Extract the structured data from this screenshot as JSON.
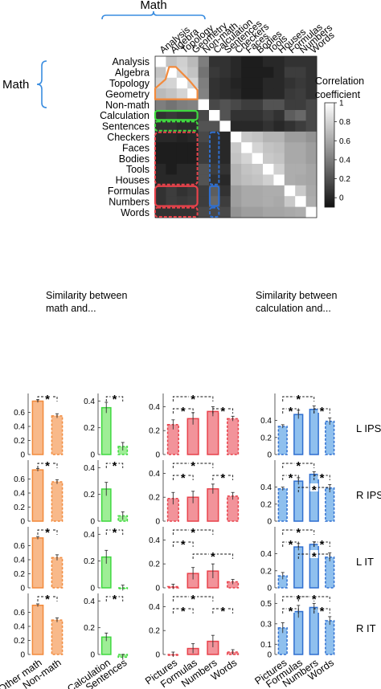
{
  "chart_data": [
    {
      "type": "heatmap",
      "group_label": "Math",
      "row_labels": [
        "Analysis",
        "Algebra",
        "Topology",
        "Geometry",
        "Non-math",
        "Calculation",
        "Sentences",
        "Checkers",
        "Faces",
        "Bodies",
        "Tools",
        "Houses",
        "Formulas",
        "Numbers",
        "Words"
      ],
      "col_labels": [
        "Analysis",
        "Algebra",
        "Topology",
        "Geometry",
        "Non-math",
        "Calculation",
        "Sentences",
        "Checkers",
        "Faces",
        "Bodies",
        "Tools",
        "Houses",
        "Formulas",
        "Numbers",
        "Words"
      ],
      "colorbar": {
        "title_lines": [
          "Correlation",
          "coefficient"
        ],
        "ticks": [
          0,
          0.2,
          0.4,
          0.6,
          0.8,
          1
        ],
        "range": [
          -0.1,
          1
        ]
      },
      "values": [
        [
          1.0,
          0.72,
          0.78,
          0.68,
          0.4,
          0.05,
          0.05,
          0.0,
          -0.05,
          -0.05,
          0.0,
          0.0,
          0.05,
          0.05,
          0.05
        ],
        [
          0.72,
          1.0,
          0.8,
          0.72,
          0.35,
          0.08,
          0.05,
          0.0,
          -0.05,
          -0.05,
          -0.05,
          0.0,
          0.1,
          0.1,
          0.05
        ],
        [
          0.78,
          0.8,
          1.0,
          0.8,
          0.4,
          0.05,
          0.02,
          -0.02,
          -0.05,
          -0.05,
          0.0,
          0.0,
          0.05,
          0.08,
          0.05
        ],
        [
          0.68,
          0.72,
          0.8,
          1.0,
          0.42,
          0.05,
          0.02,
          0.0,
          -0.05,
          -0.05,
          0.0,
          0.0,
          0.08,
          0.1,
          0.05
        ],
        [
          0.4,
          0.35,
          0.4,
          0.42,
          1.0,
          0.15,
          0.2,
          0.15,
          0.1,
          0.1,
          0.2,
          0.2,
          0.1,
          0.1,
          0.15
        ],
        [
          0.05,
          0.08,
          0.05,
          0.05,
          0.15,
          1.0,
          0.2,
          0.05,
          0.05,
          0.05,
          0.1,
          0.05,
          0.25,
          0.3,
          0.15
        ],
        [
          0.05,
          0.05,
          0.02,
          0.02,
          0.2,
          0.2,
          1.0,
          0.0,
          0.0,
          0.0,
          0.05,
          0.0,
          0.05,
          0.1,
          0.15
        ],
        [
          0.0,
          0.0,
          -0.02,
          0.0,
          0.15,
          0.05,
          0.0,
          1.0,
          0.75,
          0.72,
          0.65,
          0.65,
          0.55,
          0.55,
          0.5
        ],
        [
          -0.05,
          -0.05,
          -0.05,
          -0.05,
          0.1,
          0.05,
          0.0,
          0.75,
          1.0,
          0.8,
          0.72,
          0.7,
          0.6,
          0.6,
          0.55
        ],
        [
          -0.05,
          -0.05,
          -0.05,
          -0.05,
          0.1,
          0.05,
          0.0,
          0.72,
          0.8,
          1.0,
          0.75,
          0.72,
          0.6,
          0.6,
          0.55
        ],
        [
          0.0,
          -0.05,
          0.0,
          0.0,
          0.2,
          0.1,
          0.05,
          0.65,
          0.72,
          0.75,
          1.0,
          0.78,
          0.62,
          0.62,
          0.58
        ],
        [
          0.0,
          0.0,
          0.0,
          0.0,
          0.2,
          0.05,
          0.0,
          0.65,
          0.7,
          0.72,
          0.78,
          1.0,
          0.62,
          0.6,
          0.58
        ],
        [
          0.05,
          0.1,
          0.05,
          0.08,
          0.1,
          0.25,
          0.05,
          0.55,
          0.6,
          0.6,
          0.62,
          0.62,
          1.0,
          0.75,
          0.6
        ],
        [
          0.05,
          0.1,
          0.08,
          0.1,
          0.1,
          0.3,
          0.1,
          0.55,
          0.6,
          0.6,
          0.62,
          0.6,
          0.75,
          1.0,
          0.62
        ],
        [
          0.05,
          0.05,
          0.05,
          0.05,
          0.15,
          0.15,
          0.15,
          0.5,
          0.55,
          0.55,
          0.58,
          0.58,
          0.6,
          0.62,
          1.0
        ]
      ]
    },
    {
      "type": "bar",
      "title_lines": [
        "Similarity between",
        "math and..."
      ],
      "panel_groups": [
        {
          "categories": [
            "Other math",
            "Non-math"
          ],
          "color": "#F28A3C",
          "fill": "#F8B98A"
        },
        {
          "categories": [
            "Calculation",
            "Sentences"
          ],
          "color": "#3FD83F",
          "fill": "#9EEE96"
        },
        {
          "categories": [
            "Pictures",
            "Formulas",
            "Numbers",
            "Words"
          ],
          "color": "#E8424B",
          "fill": "#F2939A"
        }
      ],
      "rows": [
        {
          "region": "L IPS",
          "panels": [
            {
              "yticks": [
                0,
                0.2,
                0.4,
                0.6
              ],
              "ylim": [
                0,
                0.8
              ],
              "values": [
                0.76,
                0.55
              ],
              "errors": [
                0.02,
                0.03
              ]
            },
            {
              "yticks": [
                0,
                0.2,
                0.4
              ],
              "ylim": [
                0,
                0.42
              ],
              "values": [
                0.35,
                0.06
              ],
              "errors": [
                0.04,
                0.03
              ]
            },
            {
              "yticks": [
                0,
                0.2,
                0.4
              ],
              "ylim": [
                0,
                0.47
              ],
              "values": [
                0.25,
                0.3,
                0.36,
                0.3
              ],
              "errors": [
                0.04,
                0.05,
                0.04,
                0.02
              ]
            }
          ]
        },
        {
          "region": "R IPS",
          "panels": [
            {
              "yticks": [
                0,
                0.2,
                0.4,
                0.6
              ],
              "ylim": [
                0,
                0.8
              ],
              "values": [
                0.73,
                0.56
              ],
              "errors": [
                0.02,
                0.03
              ]
            },
            {
              "yticks": [
                0,
                0.2,
                0.4
              ],
              "ylim": [
                0,
                0.42
              ],
              "values": [
                0.24,
                0.04
              ],
              "errors": [
                0.05,
                0.03
              ]
            },
            {
              "yticks": [
                0,
                0.2,
                0.4
              ],
              "ylim": [
                0,
                0.47
              ],
              "values": [
                0.19,
                0.2,
                0.27,
                0.21
              ],
              "errors": [
                0.05,
                0.05,
                0.04,
                0.03
              ]
            }
          ]
        },
        {
          "region": "L IT",
          "panels": [
            {
              "yticks": [
                0,
                0.2,
                0.4,
                0.6
              ],
              "ylim": [
                0,
                0.8
              ],
              "values": [
                0.71,
                0.43
              ],
              "errors": [
                0.02,
                0.04
              ]
            },
            {
              "yticks": [
                0,
                0.2,
                0.4
              ],
              "ylim": [
                0,
                0.42
              ],
              "values": [
                0.23,
                0.0
              ],
              "errors": [
                0.05,
                0.02
              ]
            },
            {
              "yticks": [
                0,
                0.2,
                0.4
              ],
              "ylim": [
                0,
                0.47
              ],
              "values": [
                0.01,
                0.12,
                0.14,
                0.05
              ],
              "errors": [
                0.02,
                0.05,
                0.06,
                0.02
              ]
            }
          ]
        },
        {
          "region": "R IT",
          "panels": [
            {
              "yticks": [
                0,
                0.2,
                0.4,
                0.6
              ],
              "ylim": [
                0,
                0.8
              ],
              "values": [
                0.7,
                0.49
              ],
              "errors": [
                0.02,
                0.03
              ]
            },
            {
              "yticks": [
                0,
                0.2,
                0.4
              ],
              "ylim": [
                0,
                0.42
              ],
              "values": [
                0.13,
                -0.02
              ],
              "errors": [
                0.03,
                0.02
              ]
            },
            {
              "yticks": [
                0,
                0.2,
                0.4
              ],
              "ylim": [
                0,
                0.47
              ],
              "values": [
                0.0,
                0.05,
                0.11,
                0.02
              ],
              "errors": [
                0.02,
                0.04,
                0.05,
                0.02
              ]
            }
          ]
        }
      ]
    },
    {
      "type": "bar",
      "title_lines": [
        "Similarity between",
        "calculation and..."
      ],
      "categories": [
        "Pictures",
        "Formulas",
        "Numbers",
        "Words"
      ],
      "color": "#2F6FD0",
      "fill": "#8FC0EE",
      "rows": [
        {
          "region": "L IPS",
          "yticks": [
            0,
            0.2,
            0.4
          ],
          "ylim": [
            0,
            0.66
          ],
          "values": [
            0.33,
            0.47,
            0.53,
            0.39
          ],
          "errors": [
            0.02,
            0.05,
            0.04,
            0.04
          ]
        },
        {
          "region": "R IPS",
          "yticks": [
            0,
            0.2,
            0.4
          ],
          "ylim": [
            0,
            0.66
          ],
          "values": [
            0.38,
            0.47,
            0.55,
            0.39
          ],
          "errors": [
            0.02,
            0.04,
            0.03,
            0.04
          ]
        },
        {
          "region": "L IT",
          "yticks": [
            0,
            0.2,
            0.4
          ],
          "ylim": [
            0,
            0.66
          ],
          "values": [
            0.14,
            0.48,
            0.51,
            0.36
          ],
          "errors": [
            0.04,
            0.04,
            0.03,
            0.05
          ]
        },
        {
          "region": "R IT",
          "yticks": [
            0,
            0.1,
            0.3,
            0.5
          ],
          "ylim": [
            0,
            0.55
          ],
          "values": [
            0.26,
            0.42,
            0.46,
            0.33
          ],
          "errors": [
            0.05,
            0.06,
            0.04,
            0.04
          ]
        }
      ]
    }
  ]
}
